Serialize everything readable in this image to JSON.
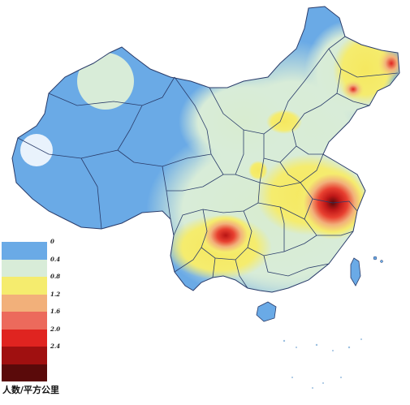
{
  "legend": {
    "caption": "人数/平方公里",
    "items": [
      {
        "label": "0",
        "color": "#6aaae6"
      },
      {
        "label": "0.4",
        "color": "#d8ecd8"
      },
      {
        "label": "0.8",
        "color": "#f5ec6e"
      },
      {
        "label": "1.2",
        "color": "#f2b07a"
      },
      {
        "label": "1.6",
        "color": "#ec6a5c"
      },
      {
        "label": "2.0",
        "color": "#e02420"
      },
      {
        "label": "2.4",
        "color": "#a01010"
      }
    ],
    "end_color": "#5a0a0a"
  }
}
